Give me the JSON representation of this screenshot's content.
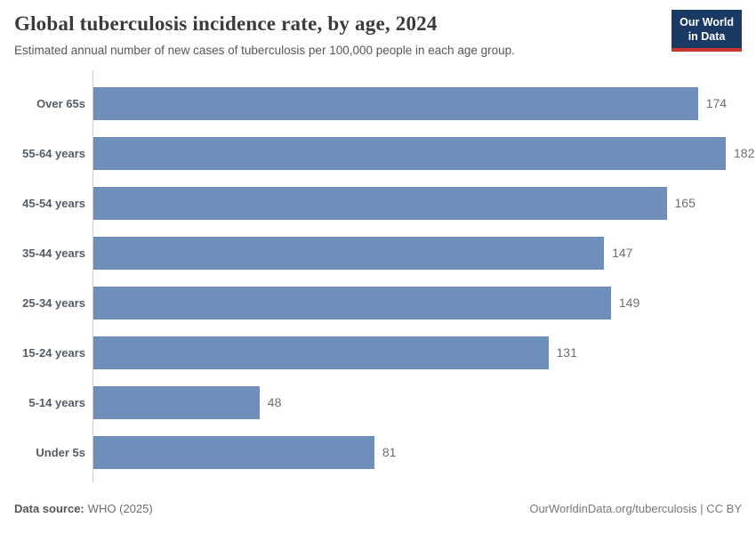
{
  "header": {
    "title": "Global tuberculosis incidence rate, by age, 2024",
    "subtitle": "Estimated annual number of new cases of tuberculosis per 100,000 people in each age group.",
    "logo": {
      "line1": "Our World",
      "line2": "in Data"
    }
  },
  "chart_data": {
    "type": "bar",
    "orientation": "horizontal",
    "title": "Global tuberculosis incidence rate, by age, 2024",
    "categories": [
      "Over 65s",
      "55-64 years",
      "45-54 years",
      "35-44 years",
      "25-34 years",
      "15-24 years",
      "5-14 years",
      "Under 5s"
    ],
    "values": [
      174,
      182,
      165,
      147,
      149,
      131,
      48,
      81
    ],
    "xlabel": "",
    "ylabel": "",
    "xlim": [
      0,
      182
    ],
    "grid": false,
    "value_labels": true,
    "bar_color": "#6f8eb9",
    "axis_line_color": "#cccccc",
    "legend": "none"
  },
  "footer": {
    "datasource_label": "Data source:",
    "datasource_value": "WHO (2025)",
    "right_text": "OurWorldinData.org/tuberculosis | CC BY"
  },
  "colors": {
    "bar": "#6f8eb9",
    "logo_background": "#1a3a63",
    "logo_underline": "#cb342d",
    "title_text": "#3b3b3b",
    "category_label_text": "#555d66",
    "value_label_text": "#6e6e6e"
  }
}
